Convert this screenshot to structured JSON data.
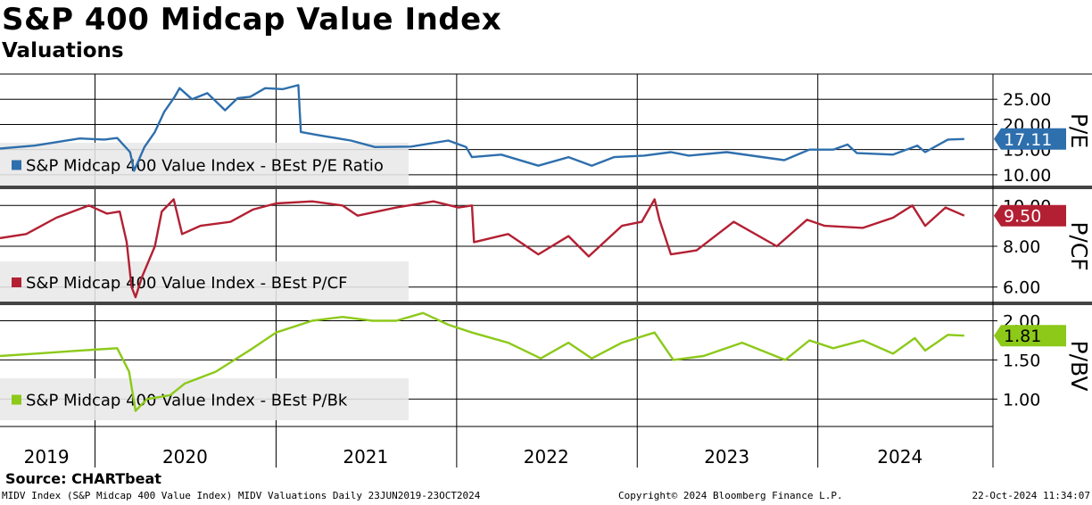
{
  "header": {
    "title": "S&P 400 Midcap Value Index",
    "subtitle": "Valuations"
  },
  "footer": {
    "source": "Source: CHARTbeat",
    "left": "MIDV Index (S&P Midcap 400 Value Index) MIDV Valuations  Daily 23JUN2019-23OCT2024",
    "center": "Copyright© 2024 Bloomberg Finance L.P.",
    "right": "22-Oct-2024 11:34:07"
  },
  "chart_data": [
    {
      "type": "line",
      "panel": "pe",
      "y_axis_title": "P/E",
      "ylim": [
        7.5,
        30
      ],
      "yticks": [
        "10.00",
        "15.00",
        "20.00",
        "25.00"
      ],
      "series": [
        {
          "name": "S&P Midcap 400 Value Index - BEst P/E Ratio",
          "color": "#2e6fad",
          "last_value": "17.11",
          "points": [
            [
              "2019-06-23",
              15.2
            ],
            [
              "2019-09-01",
              15.8
            ],
            [
              "2019-12-01",
              17.2
            ],
            [
              "2020-01-20",
              17.0
            ],
            [
              "2020-02-15",
              17.3
            ],
            [
              "2020-03-12",
              14.5
            ],
            [
              "2020-03-20",
              10.8
            ],
            [
              "2020-04-10",
              15.5
            ],
            [
              "2020-05-01",
              18.5
            ],
            [
              "2020-05-20",
              22.5
            ],
            [
              "2020-06-10",
              25.5
            ],
            [
              "2020-06-20",
              27.2
            ],
            [
              "2020-07-15",
              25.0
            ],
            [
              "2020-08-15",
              26.2
            ],
            [
              "2020-09-20",
              22.8
            ],
            [
              "2020-10-15",
              25.2
            ],
            [
              "2020-11-10",
              25.5
            ],
            [
              "2020-12-10",
              27.2
            ],
            [
              "2021-01-15",
              27.0
            ],
            [
              "2021-02-15",
              27.8
            ],
            [
              "2021-02-20",
              18.5
            ],
            [
              "2021-04-01",
              17.8
            ],
            [
              "2021-06-01",
              16.8
            ],
            [
              "2021-07-20",
              15.5
            ],
            [
              "2021-10-01",
              15.6
            ],
            [
              "2021-12-15",
              16.8
            ],
            [
              "2022-01-20",
              15.5
            ],
            [
              "2022-02-01",
              13.5
            ],
            [
              "2022-04-01",
              14.0
            ],
            [
              "2022-06-15",
              11.8
            ],
            [
              "2022-08-15",
              13.5
            ],
            [
              "2022-10-01",
              11.8
            ],
            [
              "2022-11-15",
              13.5
            ],
            [
              "2023-01-15",
              13.8
            ],
            [
              "2023-03-10",
              14.5
            ],
            [
              "2023-04-15",
              13.8
            ],
            [
              "2023-07-01",
              14.5
            ],
            [
              "2023-10-25",
              12.9
            ],
            [
              "2023-12-15",
              15.0
            ],
            [
              "2024-02-01",
              15.0
            ],
            [
              "2024-03-01",
              16.0
            ],
            [
              "2024-03-20",
              14.3
            ],
            [
              "2024-06-01",
              14.0
            ],
            [
              "2024-07-20",
              15.8
            ],
            [
              "2024-08-05",
              14.5
            ],
            [
              "2024-09-20",
              17.0
            ],
            [
              "2024-10-23",
              17.11
            ]
          ]
        }
      ]
    },
    {
      "type": "line",
      "panel": "pcf",
      "y_axis_title": "P/CF",
      "ylim": [
        5.2,
        10.8
      ],
      "yticks": [
        "6.00",
        "8.00",
        "10.00"
      ],
      "series": [
        {
          "name": "S&P Midcap 400 Value Index - BEst P/CF",
          "color": "#b32033",
          "last_value": "9.50",
          "points": [
            [
              "2019-06-23",
              8.4
            ],
            [
              "2019-08-15",
              8.6
            ],
            [
              "2019-10-15",
              9.4
            ],
            [
              "2019-12-20",
              10.0
            ],
            [
              "2020-01-25",
              9.6
            ],
            [
              "2020-02-20",
              9.7
            ],
            [
              "2020-03-05",
              8.2
            ],
            [
              "2020-03-15",
              6.0
            ],
            [
              "2020-03-23",
              5.5
            ],
            [
              "2020-04-05",
              6.5
            ],
            [
              "2020-05-01",
              8.0
            ],
            [
              "2020-05-15",
              9.7
            ],
            [
              "2020-06-08",
              10.3
            ],
            [
              "2020-06-25",
              8.6
            ],
            [
              "2020-08-01",
              9.0
            ],
            [
              "2020-10-01",
              9.2
            ],
            [
              "2020-11-15",
              9.8
            ],
            [
              "2021-01-01",
              10.1
            ],
            [
              "2021-03-15",
              10.2
            ],
            [
              "2021-05-15",
              10.0
            ],
            [
              "2021-06-15",
              9.5
            ],
            [
              "2021-09-01",
              9.9
            ],
            [
              "2021-11-15",
              10.2
            ],
            [
              "2022-01-05",
              9.9
            ],
            [
              "2022-02-01",
              10.0
            ],
            [
              "2022-02-05",
              8.2
            ],
            [
              "2022-04-15",
              8.6
            ],
            [
              "2022-06-15",
              7.6
            ],
            [
              "2022-08-15",
              8.5
            ],
            [
              "2022-09-25",
              7.5
            ],
            [
              "2022-12-01",
              9.0
            ],
            [
              "2023-01-10",
              9.2
            ],
            [
              "2023-02-05",
              10.3
            ],
            [
              "2023-02-15",
              9.3
            ],
            [
              "2023-03-10",
              7.6
            ],
            [
              "2023-05-01",
              7.8
            ],
            [
              "2023-07-15",
              9.2
            ],
            [
              "2023-10-10",
              8.0
            ],
            [
              "2023-12-10",
              9.3
            ],
            [
              "2024-01-15",
              9.0
            ],
            [
              "2024-04-01",
              8.9
            ],
            [
              "2024-06-01",
              9.4
            ],
            [
              "2024-07-10",
              10.0
            ],
            [
              "2024-08-05",
              9.0
            ],
            [
              "2024-09-15",
              9.9
            ],
            [
              "2024-10-23",
              9.5
            ]
          ]
        }
      ]
    },
    {
      "type": "line",
      "panel": "pb",
      "y_axis_title": "P/BV",
      "ylim": [
        0.65,
        2.2
      ],
      "yticks": [
        "1.00",
        "1.50",
        "2.00"
      ],
      "series": [
        {
          "name": "S&P Midcap 400 Value Index - BEst P/Bk",
          "color": "#8cc919",
          "last_value": "1.81",
          "points": [
            [
              "2019-06-23",
              1.55
            ],
            [
              "2019-09-01",
              1.58
            ],
            [
              "2019-12-01",
              1.62
            ],
            [
              "2020-02-15",
              1.65
            ],
            [
              "2020-03-10",
              1.35
            ],
            [
              "2020-03-23",
              0.85
            ],
            [
              "2020-04-15",
              1.0
            ],
            [
              "2020-06-01",
              1.05
            ],
            [
              "2020-07-01",
              1.2
            ],
            [
              "2020-09-01",
              1.35
            ],
            [
              "2020-11-15",
              1.65
            ],
            [
              "2021-01-01",
              1.85
            ],
            [
              "2021-03-15",
              2.0
            ],
            [
              "2021-05-15",
              2.05
            ],
            [
              "2021-07-15",
              2.0
            ],
            [
              "2021-09-01",
              2.0
            ],
            [
              "2021-10-25",
              2.1
            ],
            [
              "2021-12-15",
              1.95
            ],
            [
              "2022-02-01",
              1.85
            ],
            [
              "2022-04-15",
              1.72
            ],
            [
              "2022-06-20",
              1.52
            ],
            [
              "2022-08-15",
              1.72
            ],
            [
              "2022-10-01",
              1.52
            ],
            [
              "2022-12-01",
              1.72
            ],
            [
              "2023-02-05",
              1.85
            ],
            [
              "2023-03-15",
              1.5
            ],
            [
              "2023-05-15",
              1.55
            ],
            [
              "2023-08-01",
              1.72
            ],
            [
              "2023-10-27",
              1.5
            ],
            [
              "2023-12-15",
              1.75
            ],
            [
              "2024-02-01",
              1.65
            ],
            [
              "2024-04-01",
              1.75
            ],
            [
              "2024-06-01",
              1.58
            ],
            [
              "2024-07-15",
              1.78
            ],
            [
              "2024-08-05",
              1.62
            ],
            [
              "2024-09-20",
              1.82
            ],
            [
              "2024-10-23",
              1.81
            ]
          ]
        }
      ]
    }
  ],
  "x_axis": {
    "start": "2019-06-23",
    "end": "2024-12-20",
    "year_labels": [
      {
        "label": "2019",
        "date": "2019-09-25"
      },
      {
        "label": "2020",
        "date": "2020-07-01"
      },
      {
        "label": "2021",
        "date": "2021-07-01"
      },
      {
        "label": "2022",
        "date": "2022-07-01"
      },
      {
        "label": "2023",
        "date": "2023-07-01"
      },
      {
        "label": "2024",
        "date": "2024-06-15"
      }
    ],
    "year_boundaries": [
      "2020-01-01",
      "2021-01-01",
      "2022-01-01",
      "2023-01-01",
      "2024-01-01"
    ]
  }
}
